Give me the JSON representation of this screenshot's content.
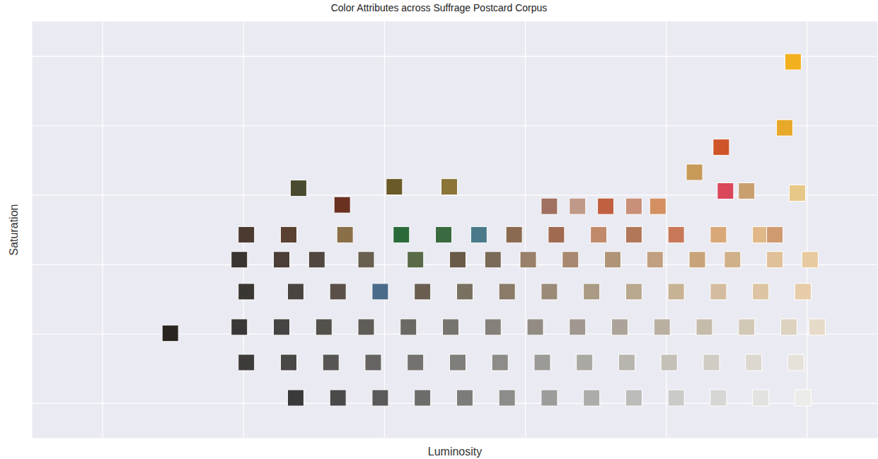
{
  "chart_data": {
    "type": "scatter",
    "title": "Color Attributes across Suffrage Postcard Corpus",
    "x_label": "Luminosity",
    "y_label": "Saturation",
    "xlim": [
      0.05,
      0.65
    ],
    "ylim": [
      0.05,
      0.65
    ],
    "xticks": [
      0.1,
      0.2,
      0.3,
      0.4,
      0.5,
      0.6
    ],
    "yticks": [
      0.1,
      0.2,
      0.3,
      0.4,
      0.5,
      0.6
    ],
    "grid": true,
    "tick_labels": false,
    "marker": "square",
    "x": [
      0.148,
      0.59,
      0.584,
      0.539,
      0.239,
      0.307,
      0.346,
      0.27,
      0.52,
      0.542,
      0.593,
      0.557,
      0.494,
      0.417,
      0.437,
      0.457,
      0.477,
      0.202,
      0.232,
      0.272,
      0.312,
      0.342,
      0.367,
      0.392,
      0.422,
      0.452,
      0.477,
      0.507,
      0.537,
      0.567,
      0.577,
      0.197,
      0.227,
      0.252,
      0.287,
      0.322,
      0.352,
      0.377,
      0.402,
      0.432,
      0.462,
      0.492,
      0.522,
      0.547,
      0.577,
      0.602,
      0.202,
      0.237,
      0.267,
      0.297,
      0.327,
      0.357,
      0.387,
      0.417,
      0.447,
      0.477,
      0.507,
      0.537,
      0.567,
      0.597,
      0.197,
      0.227,
      0.257,
      0.287,
      0.317,
      0.347,
      0.377,
      0.407,
      0.437,
      0.467,
      0.497,
      0.527,
      0.557,
      0.587,
      0.607,
      0.202,
      0.232,
      0.262,
      0.292,
      0.322,
      0.352,
      0.382,
      0.412,
      0.442,
      0.472,
      0.502,
      0.532,
      0.562,
      0.592,
      0.237,
      0.267,
      0.297,
      0.327,
      0.357,
      0.387,
      0.417,
      0.447,
      0.477,
      0.507,
      0.537,
      0.567,
      0.597
    ],
    "values": [
      0.201,
      0.592,
      0.497,
      0.469,
      0.41,
      0.412,
      0.412,
      0.386,
      0.433,
      0.406,
      0.403,
      0.406,
      0.384,
      0.384,
      0.384,
      0.384,
      0.384,
      0.343,
      0.343,
      0.343,
      0.343,
      0.343,
      0.343,
      0.343,
      0.343,
      0.343,
      0.343,
      0.343,
      0.343,
      0.343,
      0.343,
      0.307,
      0.307,
      0.307,
      0.307,
      0.307,
      0.307,
      0.307,
      0.307,
      0.307,
      0.307,
      0.307,
      0.307,
      0.307,
      0.307,
      0.307,
      0.261,
      0.261,
      0.261,
      0.261,
      0.261,
      0.261,
      0.261,
      0.261,
      0.261,
      0.261,
      0.261,
      0.261,
      0.261,
      0.261,
      0.21,
      0.21,
      0.21,
      0.21,
      0.21,
      0.21,
      0.21,
      0.21,
      0.21,
      0.21,
      0.21,
      0.21,
      0.21,
      0.21,
      0.21,
      0.159,
      0.159,
      0.159,
      0.159,
      0.159,
      0.159,
      0.159,
      0.159,
      0.159,
      0.159,
      0.159,
      0.159,
      0.159,
      0.159,
      0.108,
      0.108,
      0.108,
      0.108,
      0.108,
      0.108,
      0.108,
      0.108,
      0.108,
      0.108,
      0.108,
      0.108,
      0.108
    ],
    "colors": [
      "#2a2420",
      "#f2b01e",
      "#e8a82a",
      "#d0542a",
      "#4a4a30",
      "#6a5a28",
      "#8a7438",
      "#6a3020",
      "#c89a58",
      "#d8485a",
      "#e8c888",
      "#c8a070",
      "#d49060",
      "#a07060",
      "#c09a88",
      "#c06040",
      "#c89078",
      "#4a3a30",
      "#5a4030",
      "#8a7048",
      "#2a6a3a",
      "#3a6a40",
      "#4a7a8a",
      "#8a6a50",
      "#a06a50",
      "#c08a6a",
      "#b07858",
      "#c87858",
      "#d8a878",
      "#e0b888",
      "#d09a70",
      "#3a3430",
      "#4a3e36",
      "#504840",
      "#6a6050",
      "#586a48",
      "#6a5a48",
      "#7a6a58",
      "#98806a",
      "#a88870",
      "#b09478",
      "#c0a080",
      "#c8a478",
      "#d0b088",
      "#e0c098",
      "#e8caa0",
      "#3a3632",
      "#4a4440",
      "#5a5048",
      "#4a6a8a",
      "#6a5e50",
      "#787060",
      "#8a7a68",
      "#9a8a78",
      "#aa9a84",
      "#b8a88e",
      "#c8b294",
      "#d4bca0",
      "#dcc4a4",
      "#e6cca8",
      "#3a3836",
      "#464442",
      "#54504c",
      "#605c58",
      "#6c6864",
      "#787470",
      "#85807a",
      "#928c84",
      "#a09890",
      "#aca49a",
      "#bab0a2",
      "#c6bcac",
      "#d2c8b6",
      "#ddd2c0",
      "#e6dac8",
      "#3e3c3a",
      "#4a4846",
      "#585654",
      "#666462",
      "#74726f",
      "#807e7a",
      "#8e8c88",
      "#9c9a96",
      "#aaa8a2",
      "#b8b4ae",
      "#c4c0b8",
      "#d0ccc4",
      "#dcd8d0",
      "#e6e2da",
      "#3a3a3a",
      "#4a4a4a",
      "#5a5a5a",
      "#6c6c6a",
      "#7c7c7a",
      "#8c8c8a",
      "#9c9c9a",
      "#acacaa",
      "#bcbcba",
      "#cacac8",
      "#d6d6d4",
      "#e2e2e0",
      "#ececea"
    ]
  }
}
